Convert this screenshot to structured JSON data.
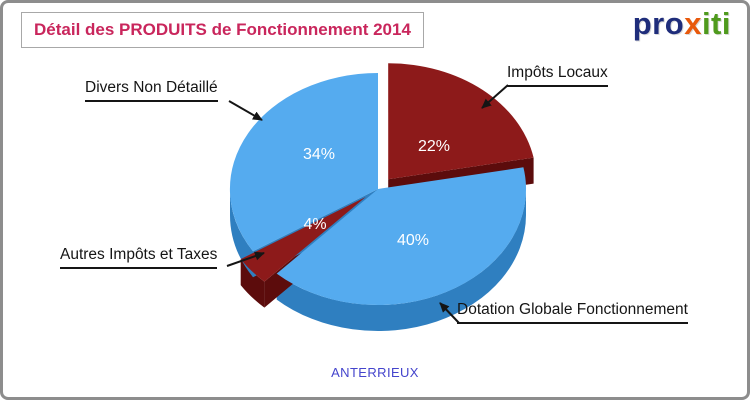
{
  "header": {
    "logo": {
      "parts": [
        {
          "text": "pro",
          "color": "#1f2d7b"
        },
        {
          "text": "x",
          "color": "#e8590c"
        },
        {
          "text": "iti",
          "color": "#4f9a1d"
        }
      ]
    }
  },
  "chart_data": {
    "type": "pie",
    "style": "3d-exploded",
    "title": "Détail des PRODUITS de Fonctionnement 2014",
    "title_color": "#c9265c",
    "subtitle_bottom": "ANTERRIEUX",
    "subtitle_color": "#4444cc",
    "unit": "%",
    "direction": "clockwise",
    "start_angle_deg": 0,
    "legend": "none",
    "slices": [
      {
        "label": "Impôts Locaux",
        "value_pct": 22,
        "color": "#8d1a1a",
        "wall_color": "#5c0c0c",
        "exploded": true
      },
      {
        "label": "Dotation Globale Fonctionnement",
        "value_pct": 40,
        "color": "#55abef",
        "wall_color": "#2f7fc0",
        "exploded": false
      },
      {
        "label": "Autres Impôts et Taxes",
        "value_pct": 4,
        "color": "#8d1a1a",
        "wall_color": "#5c0c0c",
        "exploded": true
      },
      {
        "label": "Divers Non Détaillé",
        "value_pct": 34,
        "color": "#55abef",
        "wall_color": "#2f7fc0",
        "exploded": false
      }
    ]
  }
}
